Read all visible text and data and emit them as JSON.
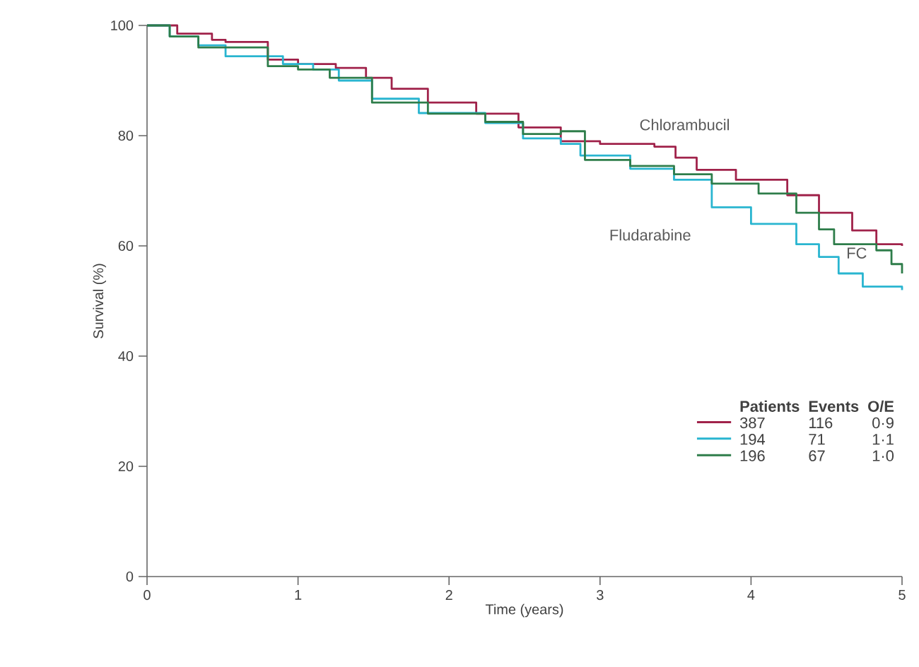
{
  "chart_data": {
    "type": "step",
    "xlabel": "Time (years)",
    "ylabel": "Survival (%)",
    "xlim": [
      0,
      5
    ],
    "ylim": [
      0,
      100
    ],
    "xticks": [
      0,
      1,
      2,
      3,
      4,
      5
    ],
    "yticks": [
      0,
      20,
      40,
      60,
      80,
      100
    ],
    "grid": false,
    "marker": "none",
    "line_style": "solid",
    "series": [
      {
        "name": "Chlorambucil",
        "color": "#a0224a",
        "x": [
          0,
          0.2,
          0.43,
          0.52,
          0.8,
          1.0,
          1.25,
          1.45,
          1.62,
          1.86,
          2.18,
          2.46,
          2.74,
          3.0,
          3.36,
          3.5,
          3.64,
          3.9,
          4.24,
          4.45,
          4.67,
          4.83,
          5.0
        ],
        "values": [
          100,
          98.5,
          97.4,
          97,
          93.8,
          93,
          92.3,
          90.5,
          88.5,
          86,
          84,
          81.5,
          79,
          78.5,
          78,
          76,
          73.8,
          72,
          69.2,
          66,
          62.8,
          60.3,
          60
        ]
      },
      {
        "name": "Fludarabine",
        "color": "#29b5d0",
        "x": [
          0,
          0.15,
          0.34,
          0.52,
          0.9,
          1.1,
          1.27,
          1.49,
          1.8,
          2.24,
          2.49,
          2.74,
          2.87,
          3.2,
          3.49,
          3.74,
          4.0,
          4.3,
          4.45,
          4.58,
          4.74,
          5.0
        ],
        "values": [
          100,
          98,
          96.4,
          94.4,
          93,
          92,
          90,
          86.7,
          84.1,
          82.3,
          79.5,
          78.5,
          76.4,
          74,
          72,
          67,
          64,
          60.3,
          58,
          55,
          52.6,
          52
        ]
      },
      {
        "name": "FC",
        "color": "#2e7d4a",
        "x": [
          0,
          0.15,
          0.34,
          0.8,
          1.0,
          1.21,
          1.49,
          1.86,
          2.24,
          2.49,
          2.74,
          2.9,
          3.2,
          3.49,
          3.74,
          4.05,
          4.3,
          4.45,
          4.55,
          4.83,
          4.93,
          5.0
        ],
        "values": [
          100,
          98,
          96,
          92.6,
          92,
          90.5,
          86,
          84,
          82.5,
          80.3,
          80.8,
          75.6,
          74.5,
          73,
          71.3,
          69.5,
          66,
          63,
          60.3,
          59.2,
          56.7,
          55
        ]
      }
    ],
    "annotations": [
      "Patients",
      "Events",
      "O/E",
      "387",
      "116",
      "0·9",
      "194",
      "71",
      "1·1",
      "196",
      "67",
      "1·0"
    ]
  }
}
